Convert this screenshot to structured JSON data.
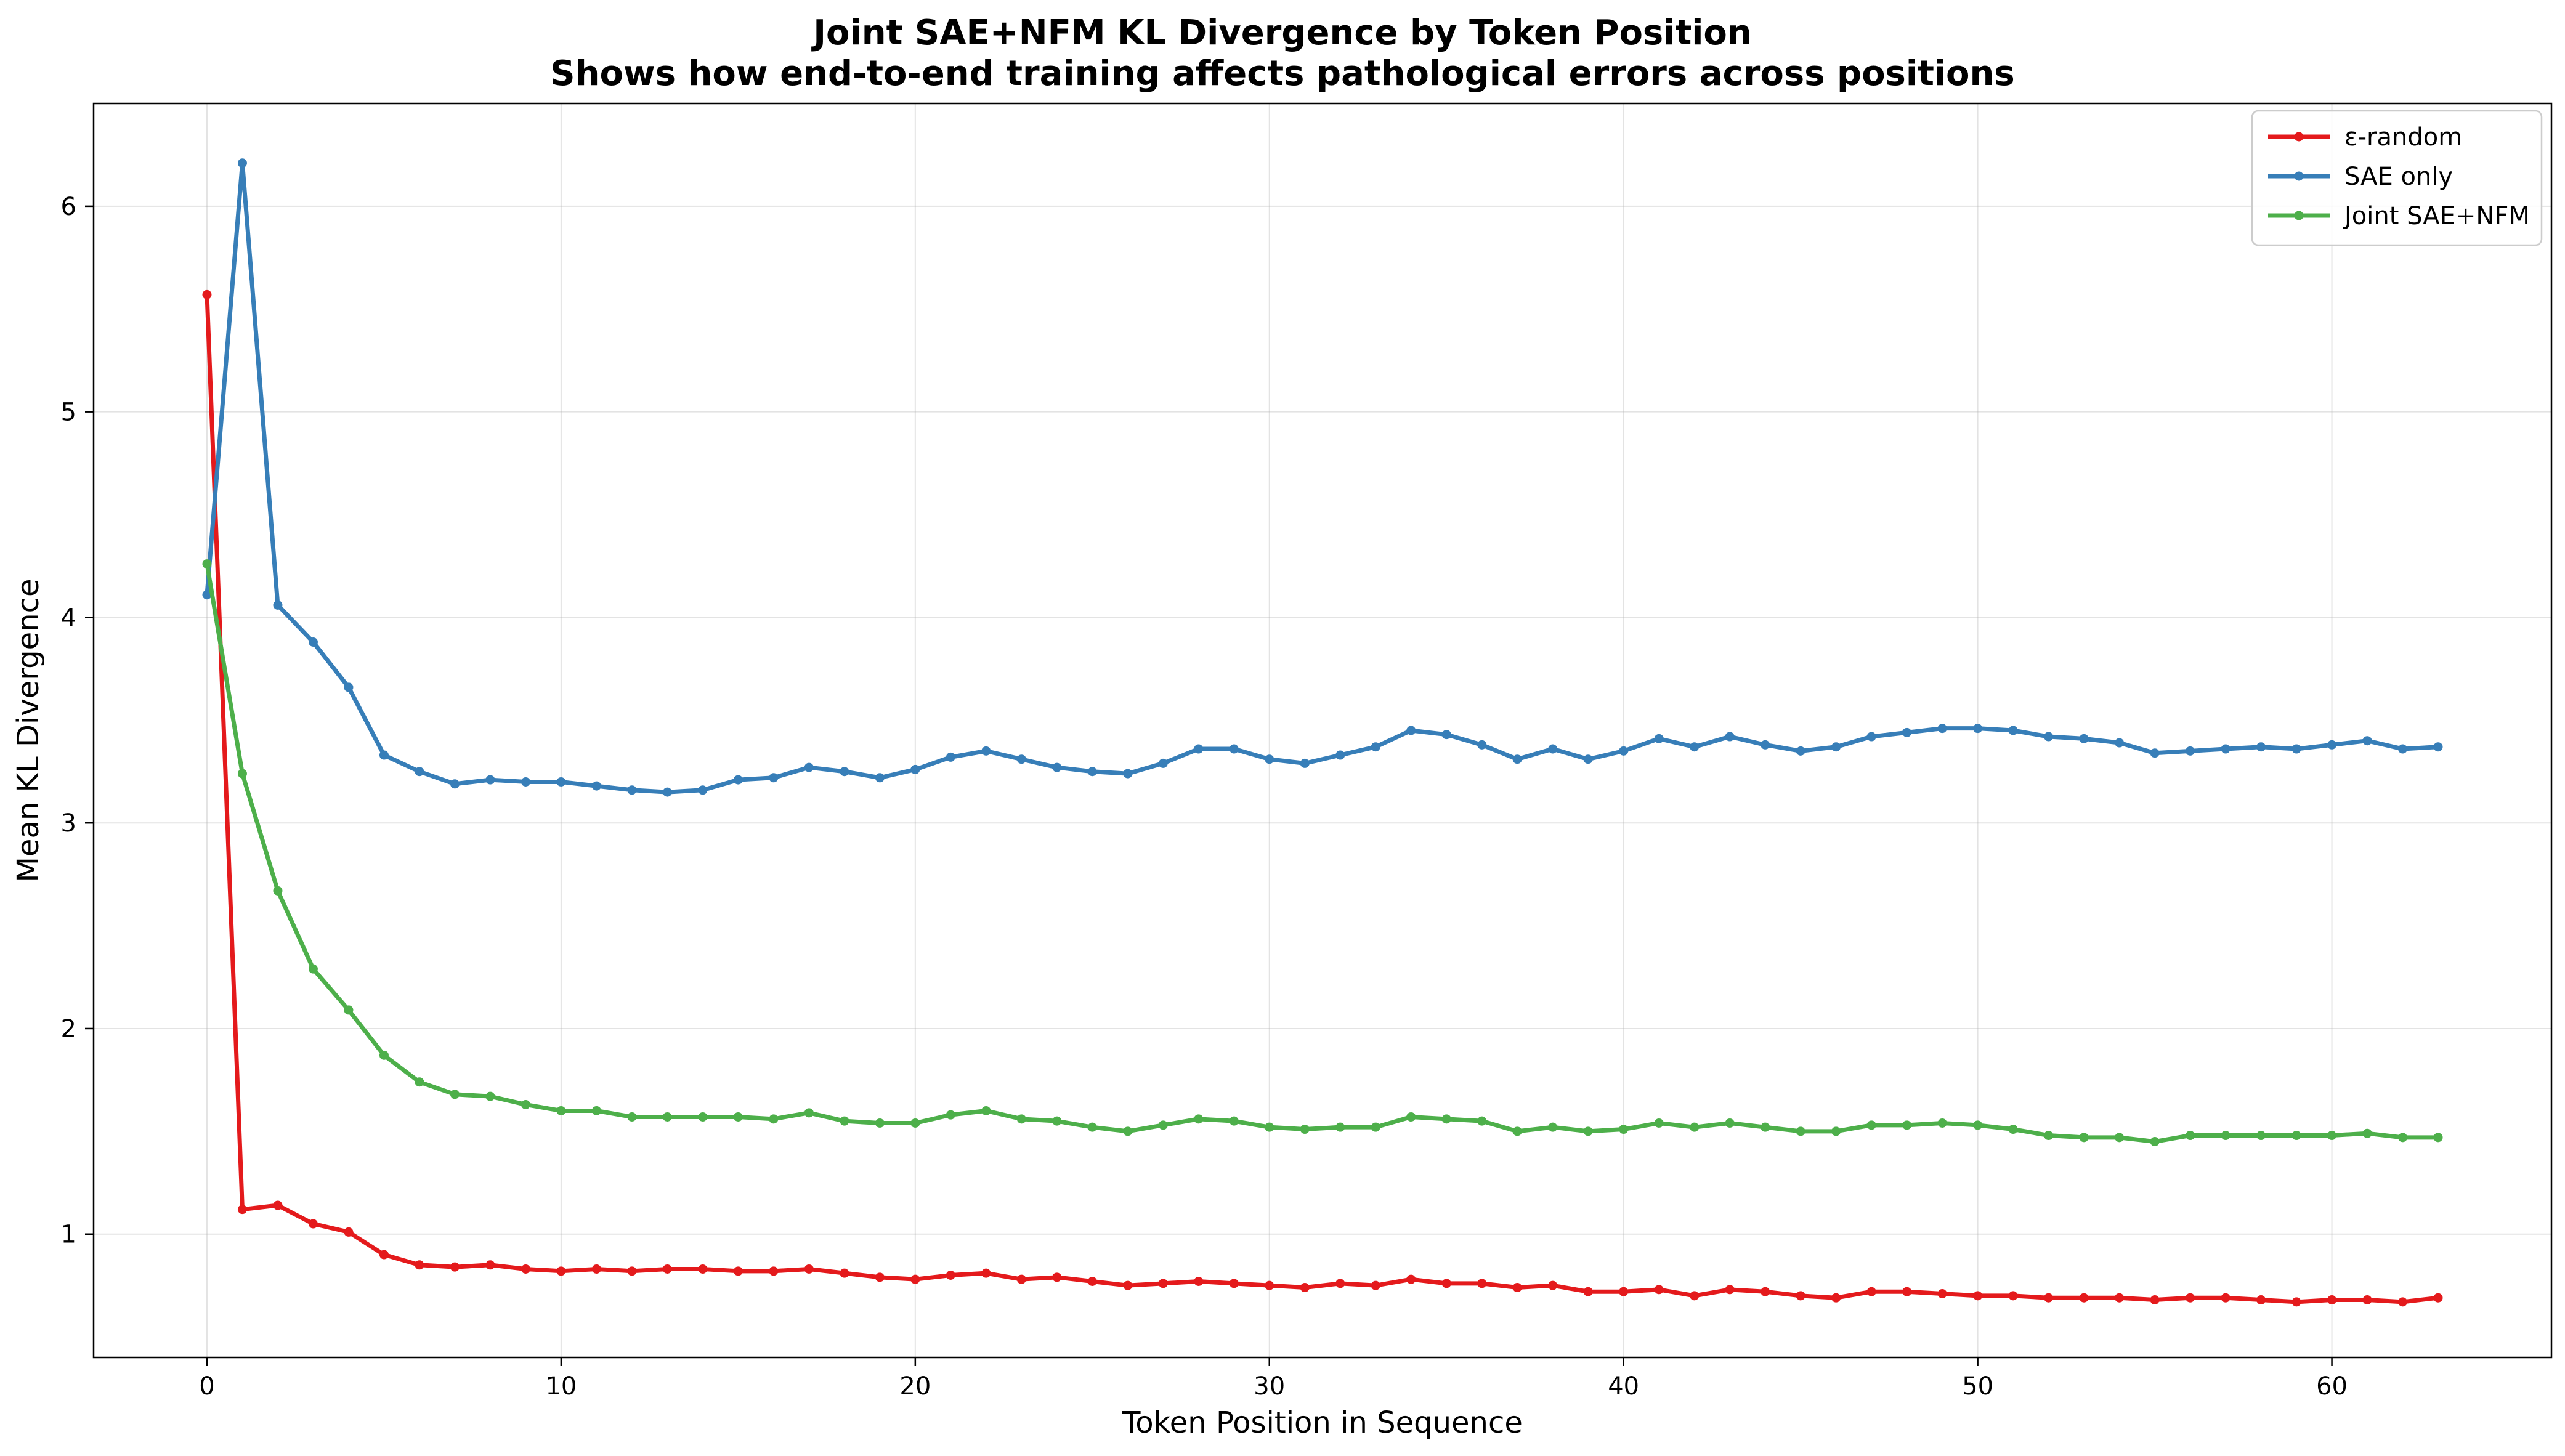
{
  "chart_data": {
    "type": "line",
    "title": "Joint SAE+NFM KL Divergence by Token Position",
    "subtitle": "Shows how end-to-end training affects pathological errors across positions",
    "xlabel": "Token Position in Sequence",
    "ylabel": "Mean KL Divergence",
    "xlim": [
      -3.2,
      66.2
    ],
    "ylim": [
      0.4,
      6.5
    ],
    "xticks": [
      0,
      10,
      20,
      30,
      40,
      50,
      60
    ],
    "yticks": [
      1,
      2,
      3,
      4,
      5,
      6
    ],
    "grid": true,
    "legend_position": "top-right",
    "x": [
      0,
      1,
      2,
      3,
      4,
      5,
      6,
      7,
      8,
      9,
      10,
      11,
      12,
      13,
      14,
      15,
      16,
      17,
      18,
      19,
      20,
      21,
      22,
      23,
      24,
      25,
      26,
      27,
      28,
      29,
      30,
      31,
      32,
      33,
      34,
      35,
      36,
      37,
      38,
      39,
      40,
      41,
      42,
      43,
      44,
      45,
      46,
      47,
      48,
      49,
      50,
      51,
      52,
      53,
      54,
      55,
      56,
      57,
      58,
      59,
      60,
      61,
      62,
      63
    ],
    "series": [
      {
        "name": "ε-random",
        "color": "#e41a1c",
        "values": [
          5.57,
          1.12,
          1.14,
          1.05,
          1.01,
          0.9,
          0.85,
          0.84,
          0.85,
          0.83,
          0.82,
          0.83,
          0.82,
          0.83,
          0.83,
          0.82,
          0.82,
          0.83,
          0.81,
          0.79,
          0.78,
          0.8,
          0.81,
          0.78,
          0.79,
          0.77,
          0.75,
          0.76,
          0.77,
          0.76,
          0.75,
          0.74,
          0.76,
          0.75,
          0.78,
          0.76,
          0.76,
          0.74,
          0.75,
          0.72,
          0.72,
          0.73,
          0.7,
          0.73,
          0.72,
          0.7,
          0.69,
          0.72,
          0.72,
          0.71,
          0.7,
          0.7,
          0.69,
          0.69,
          0.69,
          0.68,
          0.69,
          0.69,
          0.68,
          0.67,
          0.68,
          0.68,
          0.67,
          0.69
        ]
      },
      {
        "name": "SAE only",
        "color": "#377eb8",
        "values": [
          4.11,
          6.21,
          4.06,
          3.88,
          3.66,
          3.33,
          3.25,
          3.19,
          3.21,
          3.2,
          3.2,
          3.18,
          3.16,
          3.15,
          3.16,
          3.21,
          3.22,
          3.27,
          3.25,
          3.22,
          3.26,
          3.32,
          3.35,
          3.31,
          3.27,
          3.25,
          3.24,
          3.29,
          3.36,
          3.36,
          3.31,
          3.29,
          3.33,
          3.37,
          3.45,
          3.43,
          3.38,
          3.31,
          3.36,
          3.31,
          3.35,
          3.41,
          3.37,
          3.42,
          3.38,
          3.35,
          3.37,
          3.42,
          3.44,
          3.46,
          3.46,
          3.45,
          3.42,
          3.41,
          3.39,
          3.34,
          3.35,
          3.36,
          3.37,
          3.36,
          3.38,
          3.4,
          3.36,
          3.37
        ]
      },
      {
        "name": "Joint SAE+NFM",
        "color": "#4daf4a",
        "values": [
          4.26,
          3.24,
          2.67,
          2.29,
          2.09,
          1.87,
          1.74,
          1.68,
          1.67,
          1.63,
          1.6,
          1.6,
          1.57,
          1.57,
          1.57,
          1.57,
          1.56,
          1.59,
          1.55,
          1.54,
          1.54,
          1.58,
          1.6,
          1.56,
          1.55,
          1.52,
          1.5,
          1.53,
          1.56,
          1.55,
          1.52,
          1.51,
          1.52,
          1.52,
          1.57,
          1.56,
          1.55,
          1.5,
          1.52,
          1.5,
          1.51,
          1.54,
          1.52,
          1.54,
          1.52,
          1.5,
          1.5,
          1.53,
          1.53,
          1.54,
          1.53,
          1.51,
          1.48,
          1.47,
          1.47,
          1.45,
          1.48,
          1.48,
          1.48,
          1.48,
          1.48,
          1.49,
          1.47,
          1.47
        ]
      }
    ]
  }
}
